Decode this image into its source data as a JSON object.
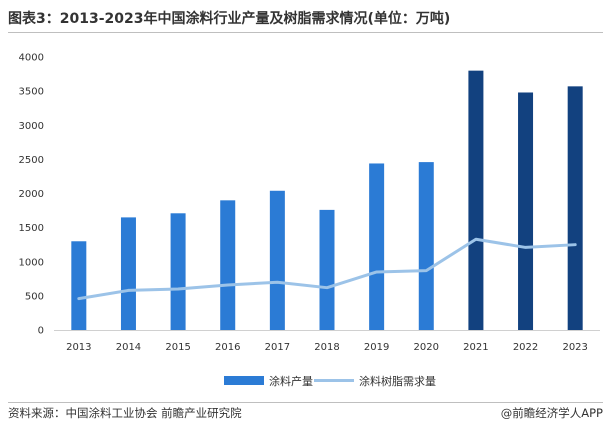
{
  "title": "图表3：2013-2023年中国涂料行业产量及树脂需求情况(单位：万吨)",
  "source": "资料来源：中国涂料工业协会 前瞻产业研究院",
  "brand": "@前瞻经济学人APP",
  "chart_data": {
    "type": "bar",
    "title": "图表3：2013-2023年中国涂料行业产量及树脂需求情况(单位：万吨)",
    "categories": [
      "2013",
      "2014",
      "2015",
      "2016",
      "2017",
      "2018",
      "2019",
      "2020",
      "2021",
      "2022",
      "2023"
    ],
    "ylim": [
      0,
      4000
    ],
    "yticks": [
      0,
      500,
      1000,
      1500,
      2000,
      2500,
      3000,
      3500,
      4000
    ],
    "grid": false,
    "legend": "bottom-center",
    "series": [
      {
        "name": "涂料产量",
        "type": "bar",
        "color": "#2b7bd5",
        "color_highlight": "#12417f",
        "values": [
          1300,
          1650,
          1710,
          1900,
          2040,
          1760,
          2440,
          2460,
          3800,
          3480,
          3570
        ]
      },
      {
        "name": "涂料树脂需求量",
        "type": "line",
        "color": "#9cc3e8",
        "values": [
          460,
          580,
          600,
          660,
          700,
          620,
          850,
          870,
          1330,
          1210,
          1250
        ]
      }
    ]
  }
}
